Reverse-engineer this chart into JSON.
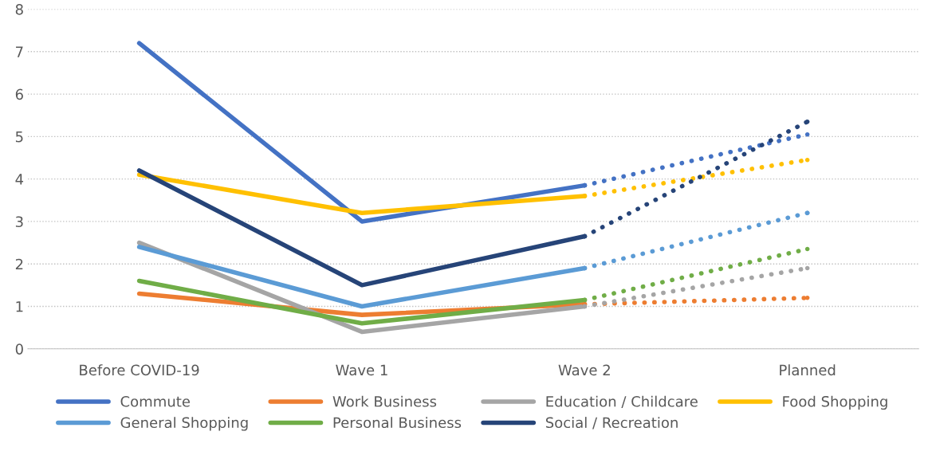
{
  "chart_data": {
    "type": "line",
    "categories": [
      "Before COVID-19",
      "Wave 1",
      "Wave 2",
      "Planned"
    ],
    "ylim": [
      0,
      8
    ],
    "yticks": [
      0,
      1,
      2,
      3,
      4,
      5,
      6,
      7,
      8
    ],
    "grid": "y",
    "legend": "bottom",
    "marker": "none",
    "series": [
      {
        "name": "Commute",
        "color": "#4472c4",
        "line_style": "solid",
        "values": [
          7.2,
          3.0,
          3.85,
          null
        ]
      },
      {
        "name": "Work Business",
        "color": "#ed7d31",
        "line_style": "solid",
        "values": [
          1.3,
          0.8,
          1.05,
          null
        ]
      },
      {
        "name": "Education / Childcare",
        "color": "#a5a5a5",
        "line_style": "solid",
        "values": [
          2.5,
          0.4,
          1.0,
          null
        ]
      },
      {
        "name": "Food Shopping",
        "color": "#ffc000",
        "line_style": "solid",
        "values": [
          4.1,
          3.2,
          3.6,
          null
        ]
      },
      {
        "name": "General Shopping",
        "color": "#5b9bd5",
        "line_style": "solid",
        "values": [
          2.4,
          1.0,
          1.9,
          null
        ]
      },
      {
        "name": "Personal Business",
        "color": "#70ad47",
        "line_style": "solid",
        "values": [
          1.6,
          0.6,
          1.15,
          null
        ]
      },
      {
        "name": "Social / Recreation",
        "color": "#264478",
        "line_style": "solid",
        "values": [
          4.2,
          1.5,
          2.65,
          null
        ]
      },
      {
        "color": "#4472c4",
        "line_style": "dotted",
        "values": [
          null,
          null,
          3.85,
          5.05
        ]
      },
      {
        "color": "#ed7d31",
        "line_style": "dotted",
        "values": [
          null,
          null,
          1.05,
          1.2
        ]
      },
      {
        "color": "#a5a5a5",
        "line_style": "dotted",
        "values": [
          null,
          null,
          1.0,
          1.9
        ]
      },
      {
        "color": "#ffc000",
        "line_style": "dotted",
        "values": [
          null,
          null,
          3.6,
          4.45
        ]
      },
      {
        "color": "#5b9bd5",
        "line_style": "dotted",
        "values": [
          null,
          null,
          1.9,
          3.2
        ]
      },
      {
        "color": "#70ad47",
        "line_style": "dotted",
        "values": [
          null,
          null,
          1.15,
          2.35
        ]
      },
      {
        "color": "#264478",
        "line_style": "dotted",
        "values": [
          null,
          null,
          2.65,
          5.35
        ]
      }
    ]
  }
}
